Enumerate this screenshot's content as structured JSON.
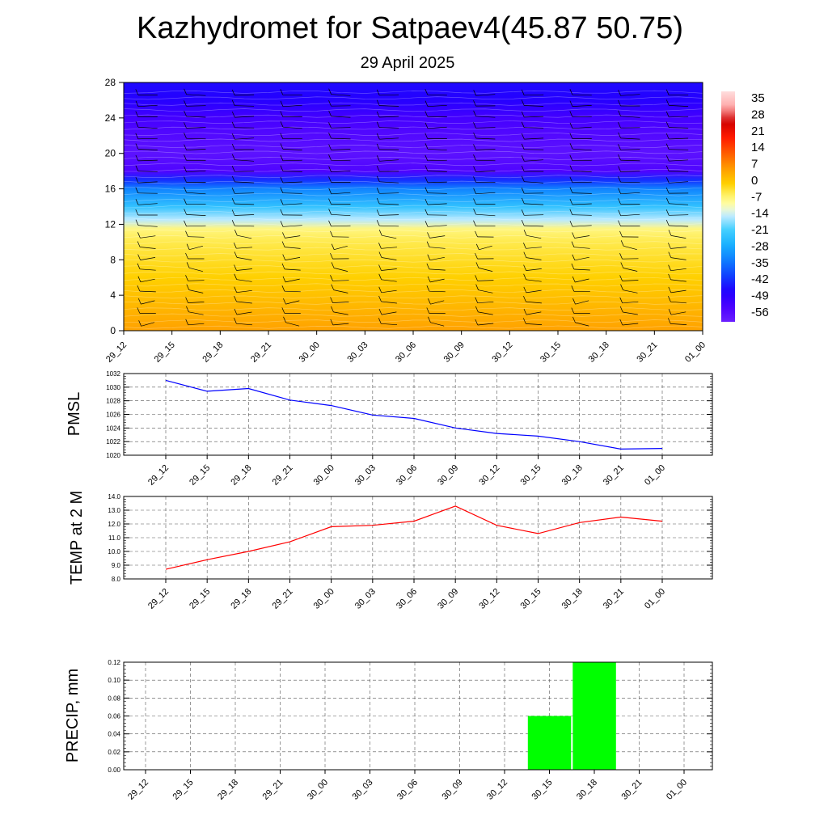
{
  "header": {
    "title": "Kazhydromet for Satpaev4(45.87 50.75)",
    "date": "29 April 2025"
  },
  "chart_data": [
    {
      "type": "heatmap",
      "name": "cross-section",
      "x_tick_labels": [
        "29_12",
        "29_15",
        "29_18",
        "29_21",
        "30_00",
        "30_03",
        "30_06",
        "30_09",
        "30_12",
        "30_15",
        "30_18",
        "30_21",
        "01_00"
      ],
      "y_ticks": [
        0,
        4,
        8,
        12,
        16,
        20,
        24,
        28
      ],
      "ylim": [
        0,
        28
      ],
      "colorbar_labels": [
        "35",
        "28",
        "21",
        "14",
        "7",
        "0",
        "-7",
        "-14",
        "-21",
        "-28",
        "-35",
        "-42",
        "-49",
        "-56"
      ],
      "colorbar_range": [
        -63,
        42
      ],
      "temperature_profile": [
        {
          "h": 0,
          "t": 6
        },
        {
          "h": 2,
          "t": 4
        },
        {
          "h": 4,
          "t": 2
        },
        {
          "h": 6,
          "t": 0
        },
        {
          "h": 8,
          "t": -2
        },
        {
          "h": 10,
          "t": -4
        },
        {
          "h": 11.5,
          "t": -7
        },
        {
          "h": 12.5,
          "t": -15
        },
        {
          "h": 14,
          "t": -24
        },
        {
          "h": 16,
          "t": -34
        },
        {
          "h": 17,
          "t": -44
        },
        {
          "h": 18,
          "t": -57
        },
        {
          "h": 20,
          "t": -60
        },
        {
          "h": 22,
          "t": -58
        },
        {
          "h": 24,
          "t": -55
        },
        {
          "h": 26,
          "t": -50
        },
        {
          "h": 28,
          "t": -48
        }
      ],
      "wind_barbs": "present",
      "colors": {
        "warm": "#ff7a00",
        "neutral": "#ffff99",
        "cool": "#19b4ff",
        "cold": "#1a00ff",
        "coldest": "#7a28ff"
      }
    },
    {
      "type": "line",
      "name": "PMSL",
      "ylabel": "PMSL",
      "categories": [
        "29_12",
        "29_15",
        "29_18",
        "29_21",
        "30_00",
        "30_03",
        "30_06",
        "30_09",
        "30_12",
        "30_15",
        "30_18",
        "30_21",
        "01_00"
      ],
      "values": [
        1031.0,
        1029.4,
        1029.8,
        1028.1,
        1027.3,
        1025.9,
        1025.4,
        1024.0,
        1023.2,
        1022.8,
        1022.0,
        1020.9,
        1021.0
      ],
      "ylim": [
        1020,
        1032
      ],
      "yticks": [
        "1020",
        "1022",
        "1024",
        "1026",
        "1028",
        "1030",
        "1032"
      ],
      "color": "#0000ff",
      "grid": true
    },
    {
      "type": "line",
      "name": "temp2m",
      "ylabel": "TEMP at 2 M",
      "categories": [
        "29_12",
        "29_15",
        "29_18",
        "29_21",
        "30_00",
        "30_03",
        "30_06",
        "30_09",
        "30_12",
        "30_15",
        "30_18",
        "30_21",
        "01_00"
      ],
      "values": [
        8.7,
        9.4,
        10.0,
        10.7,
        11.8,
        11.9,
        12.2,
        13.3,
        11.9,
        11.3,
        12.1,
        12.5,
        12.2
      ],
      "ylim": [
        8,
        14
      ],
      "yticks": [
        "8.0",
        "9.0",
        "10.0",
        "11.0",
        "12.0",
        "13.0",
        "14.0"
      ],
      "color": "#ff0000",
      "grid": true
    },
    {
      "type": "bar",
      "name": "precip",
      "ylabel": "PRECIP, mm",
      "categories": [
        "29_12",
        "29_15",
        "29_18",
        "29_21",
        "30_00",
        "30_03",
        "30_06",
        "30_09",
        "30_12",
        "30_15",
        "30_18",
        "30_21",
        "01_00"
      ],
      "values": [
        0,
        0,
        0,
        0,
        0,
        0,
        0,
        0,
        0,
        0.06,
        0.12,
        0,
        0
      ],
      "ylim": [
        0,
        0.12
      ],
      "yticks": [
        "0.00",
        "0.02",
        "0.04",
        "0.06",
        "0.08",
        "0.10",
        "0.12"
      ],
      "color": "#00ff00",
      "grid": true
    }
  ]
}
